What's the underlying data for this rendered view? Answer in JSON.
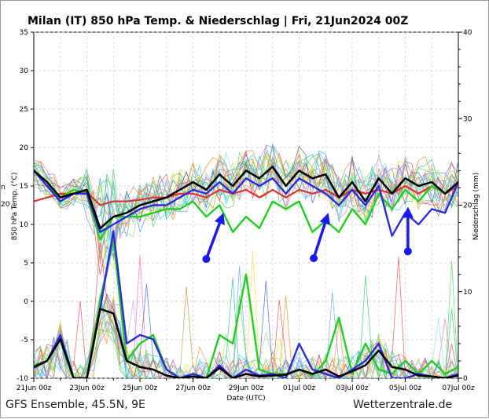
{
  "chart_data": {
    "type": "line",
    "title": "Milan  (IT)  850 hPa Temp. & Niederschlag | Fri, 21Jun2024 00Z",
    "ylabel_left": "850 hPa Temp. (°C)",
    "ylabel_right": "Niederschlag (mm)",
    "xlabel": "Date (UTC)",
    "ylim": [
      -10,
      35
    ],
    "ylim_right": [
      0,
      40
    ],
    "yticks_left": [
      "35",
      "30",
      "25",
      "20",
      "15",
      "10",
      "5",
      "0",
      "-5",
      "-10"
    ],
    "yticks_right": [
      "40",
      "30",
      "20",
      "10",
      "0"
    ],
    "x_tick_labels": [
      "21Jun 00z",
      "23Jun 00z",
      "25Jun 00z",
      "27Jun 00z",
      "29Jun 00z",
      "01Jul 00z",
      "03Jul 00z",
      "05Jul 00z",
      "07Jul 00z"
    ],
    "x_range_days": [
      0,
      16
    ],
    "grid": true,
    "footer_left": "GFS Ensemble, 45.5N, 9E",
    "footer_right": "Wetterzentrale.de",
    "clipped_left_labels": [
      "n",
      "20"
    ],
    "colors": {
      "mean": "#000000",
      "control": "#2b2bdd",
      "operational": "#22cc22",
      "climate": "#e03030",
      "arrow": "#1a1aee"
    },
    "series": [
      {
        "role": "mean",
        "x": [
          0,
          0.5,
          1,
          1.5,
          2,
          2.5,
          3,
          3.5,
          4,
          4.5,
          5,
          5.5,
          6,
          6.5,
          7,
          7.5,
          8,
          8.5,
          9,
          9.5,
          10,
          10.5,
          11,
          11.5,
          12,
          12.5,
          13,
          13.5,
          14,
          14.5,
          15,
          15.5,
          16
        ],
        "values": [
          17,
          15.5,
          13.5,
          14,
          14.5,
          9.5,
          11,
          11.5,
          12.5,
          13,
          13.5,
          14.5,
          15.5,
          14.5,
          16.5,
          15,
          17,
          16,
          17.5,
          15,
          17,
          16,
          16.5,
          13.5,
          15.5,
          13,
          16,
          14,
          16,
          15,
          15.5,
          14,
          15.5
        ]
      },
      {
        "role": "control",
        "x": [
          0,
          0.5,
          1,
          1.5,
          2,
          2.5,
          3,
          3.5,
          4,
          4.5,
          5,
          5.5,
          6,
          6.5,
          7,
          7.5,
          8,
          8.5,
          9,
          9.5,
          10,
          10.5,
          11,
          11.5,
          12,
          12.5,
          13,
          13.5,
          14,
          14.5,
          15,
          15.5,
          16
        ],
        "values": [
          17,
          15,
          13,
          14,
          14,
          9,
          10,
          11,
          12,
          12.5,
          12.5,
          13.5,
          14.5,
          14,
          15.5,
          14,
          16,
          15,
          16,
          14,
          16,
          15,
          14,
          12.5,
          14.5,
          12.5,
          15,
          8.5,
          11.5,
          10,
          12,
          11.5,
          15.5
        ]
      },
      {
        "role": "operational",
        "x": [
          0,
          0.5,
          1,
          1.5,
          2,
          2.5,
          3,
          3.5,
          4,
          4.5,
          5,
          5.5,
          6,
          6.5,
          7,
          7.5,
          8,
          8.5,
          9,
          9.5,
          10,
          10.5,
          11,
          11.5,
          12,
          12.5,
          13,
          13.5,
          14,
          14.5,
          15,
          15.5,
          16
        ],
        "values": [
          17,
          15,
          13.5,
          14.5,
          14,
          8,
          11,
          11,
          11,
          11.5,
          12,
          12,
          13,
          11,
          12.5,
          9,
          11,
          9.5,
          13,
          12,
          13,
          9,
          10.5,
          9,
          12,
          10,
          14,
          12,
          14.5,
          13,
          15,
          14,
          15.5
        ]
      },
      {
        "role": "climate",
        "x": [
          0,
          0.5,
          1,
          1.5,
          2,
          2.5,
          3,
          3.5,
          4,
          4.5,
          5,
          5.5,
          6,
          6.5,
          7,
          7.5,
          8,
          8.5,
          9,
          9.5,
          10,
          10.5,
          11,
          11.5,
          12,
          12.5,
          13,
          13.5,
          14,
          14.5,
          15,
          15.5,
          16
        ],
        "values": [
          13,
          13.5,
          14,
          14,
          14.2,
          12.5,
          13,
          13,
          13.2,
          13.5,
          13.5,
          14,
          14,
          13.5,
          14.5,
          14,
          14.5,
          13.5,
          14.5,
          13.5,
          14.5,
          14,
          14.5,
          13.5,
          14.5,
          14,
          14.5,
          14,
          15,
          14,
          15,
          14,
          15
        ]
      },
      {
        "role": "precip-mean",
        "axis": "right",
        "x": [
          0,
          0.5,
          1,
          1.5,
          2,
          2.5,
          3,
          3.5,
          4,
          4.5,
          5,
          5.5,
          6,
          6.5,
          7,
          7.5,
          8,
          8.5,
          9,
          9.5,
          10,
          10.5,
          11,
          11.5,
          12,
          12.5,
          13,
          13.5,
          14,
          14.5,
          15,
          15.5,
          16
        ],
        "values": [
          1.3,
          2,
          4.5,
          0,
          0,
          8,
          7.5,
          2,
          1.3,
          1,
          0.3,
          0,
          0.2,
          0,
          1.2,
          0,
          0.5,
          0.2,
          0.3,
          0.4,
          1,
          0.5,
          1,
          0.2,
          0.8,
          1.5,
          3.2,
          1.3,
          1,
          0.3,
          0.2,
          0,
          0.3
        ]
      },
      {
        "role": "precip-control",
        "axis": "right",
        "x": [
          0,
          0.5,
          1,
          1.5,
          2,
          2.5,
          3,
          3.5,
          4,
          4.5,
          5,
          5.5,
          6,
          6.5,
          7,
          7.5,
          8,
          8.5,
          9,
          9.5,
          10,
          10.5,
          11,
          11.5,
          12,
          12.5,
          13,
          13.5,
          14,
          14.5,
          15,
          15.5,
          16
        ],
        "values": [
          1.2,
          2,
          5,
          0,
          0,
          8,
          17,
          4,
          5,
          4.5,
          1,
          0,
          0.5,
          0,
          1.5,
          0,
          1,
          0.3,
          0.5,
          0,
          4,
          1,
          0.5,
          0,
          1,
          2,
          4,
          0,
          0,
          0.5,
          0.2,
          0,
          0.5
        ]
      },
      {
        "role": "precip-operational",
        "axis": "right",
        "x": [
          0,
          0.5,
          1,
          1.5,
          2,
          2.5,
          3,
          3.5,
          4,
          4.5,
          5,
          5.5,
          6,
          6.5,
          7,
          7.5,
          8,
          8.5,
          9,
          9.5,
          10,
          10.5,
          11,
          11.5,
          12,
          12.5,
          13,
          13.5,
          14,
          14.5,
          15,
          15.5,
          16
        ],
        "values": [
          1.5,
          2,
          5,
          0,
          0,
          9,
          16,
          2,
          4,
          5,
          1,
          0,
          0.5,
          0,
          5,
          4,
          12,
          1,
          0.5,
          0.5,
          1,
          0.3,
          2,
          7,
          0.5,
          4,
          1,
          0.5,
          2,
          0.5,
          2,
          0.5,
          1.3
        ]
      }
    ],
    "arrows": [
      {
        "from": [
          6.5,
          5.5
        ],
        "to": [
          7.15,
          11.5
        ]
      },
      {
        "from": [
          10.55,
          5.6
        ],
        "to": [
          11.1,
          11.5
        ]
      },
      {
        "from": [
          14.1,
          6.5
        ],
        "to": [
          14.1,
          12.3
        ]
      }
    ]
  }
}
